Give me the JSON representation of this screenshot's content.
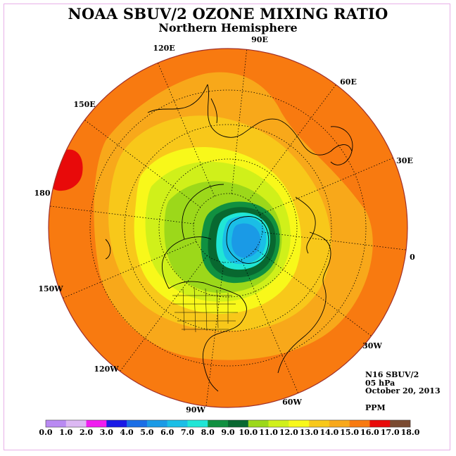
{
  "title": "NOAA SBUV/2 OZONE MIXING RATIO",
  "subtitle": "Northern Hemisphere",
  "info": {
    "instrument": "N16 SBUV/2",
    "level": "05 hPa",
    "date": "October 20, 2013",
    "units": "PPM"
  },
  "longitude_labels": [
    {
      "id": "90E",
      "text": "90E"
    },
    {
      "id": "60E",
      "text": "60E"
    },
    {
      "id": "30E",
      "text": "30E"
    },
    {
      "id": "0",
      "text": "0"
    },
    {
      "id": "30W",
      "text": "30W"
    },
    {
      "id": "60W",
      "text": "60W"
    },
    {
      "id": "90W",
      "text": "90W"
    },
    {
      "id": "120W",
      "text": "120W"
    },
    {
      "id": "150W",
      "text": "150W"
    },
    {
      "id": "180",
      "text": "180"
    },
    {
      "id": "150E",
      "text": "150E"
    },
    {
      "id": "120E",
      "text": "120E"
    }
  ],
  "colorbar": {
    "colors": [
      "#b98af2",
      "#dcb8f3",
      "#f01cf0",
      "#1a1ae6",
      "#1a6ee6",
      "#1a9ae6",
      "#1abee6",
      "#20e6d6",
      "#109040",
      "#086830",
      "#9cd81a",
      "#d0f01a",
      "#f8f81a",
      "#f8c81a",
      "#f8a81a",
      "#f87a10",
      "#e80a0a",
      "#7a4a30"
    ],
    "labels": [
      "0.0",
      "1.0",
      "2.0",
      "3.0",
      "4.0",
      "5.0",
      "6.0",
      "7.0",
      "8.0",
      "9.0",
      "10.0",
      "11.0",
      "12.0",
      "13.0",
      "14.0",
      "15.0",
      "16.0",
      "17.0",
      "18.0"
    ]
  },
  "field_colors": {
    "outer": "#f87a10",
    "orange": "#f8a81a",
    "light_orange": "#f8c81a",
    "yellow": "#f8f81a",
    "yellow_green": "#d0f01a",
    "green": "#9cd81a",
    "dark_green": "#109040",
    "darkest_green": "#086830",
    "cyan": "#20e6d6",
    "light_blue": "#1abee6",
    "blue": "#1a9ae6",
    "red": "#e80a0a",
    "rim": "#a0302a"
  }
}
